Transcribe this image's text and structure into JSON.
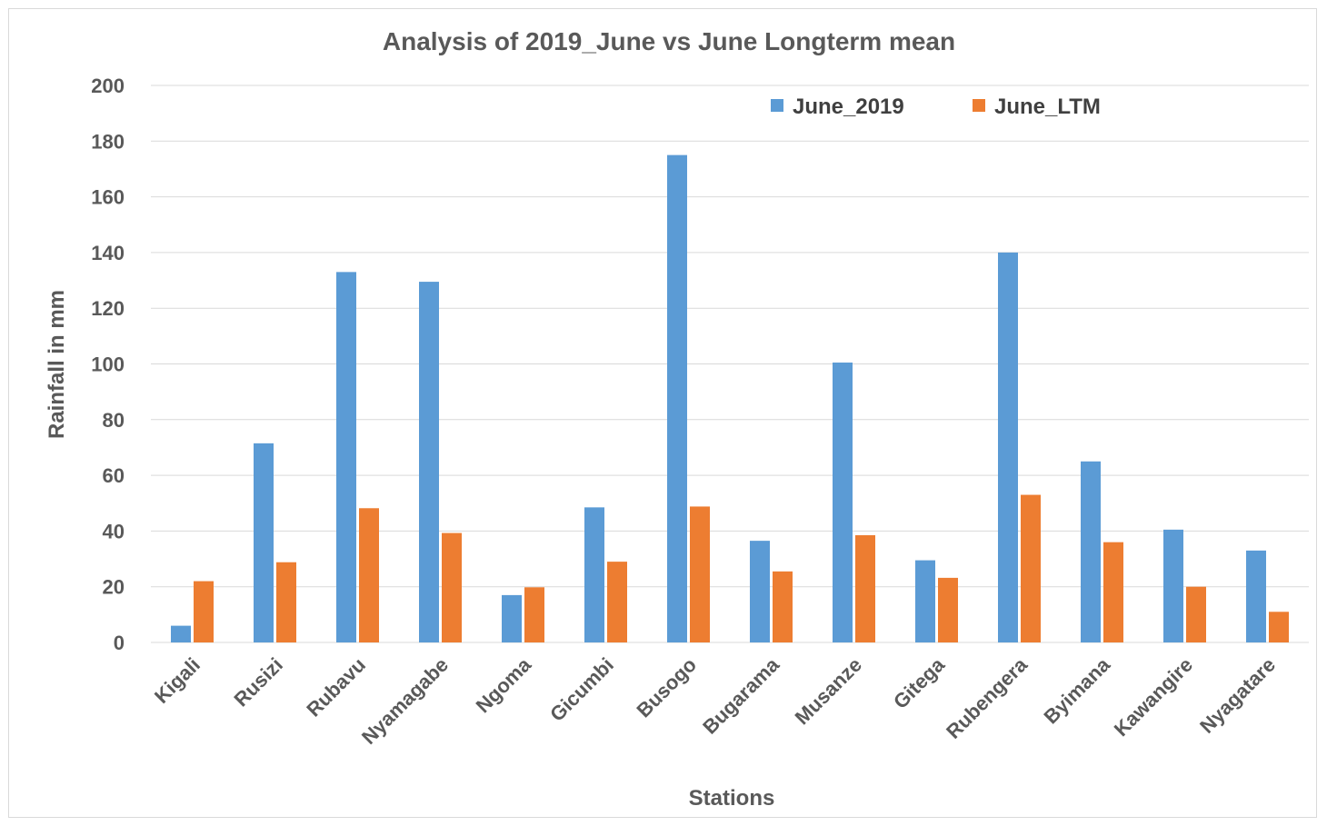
{
  "chart_data": {
    "type": "bar",
    "title": "Analysis of 2019_June vs June Longterm mean",
    "xlabel": "Stations",
    "ylabel": "Rainfall in mm",
    "ylim": [
      0,
      200
    ],
    "yticks": [
      0,
      20,
      40,
      60,
      80,
      100,
      120,
      140,
      160,
      180,
      200
    ],
    "grid": true,
    "legend_position": "top-right",
    "categories": [
      "Kigali",
      "Rusizi",
      "Rubavu",
      "Nyamagabe",
      "Ngoma",
      "Gicumbi",
      "Busogo",
      "Bugarama",
      "Musanze",
      "Gitega",
      "Rubengera",
      "Byimana",
      "Kawangire",
      "Nyagatare"
    ],
    "series": [
      {
        "name": "June_2019",
        "color": "#5b9bd5",
        "values": [
          6,
          71.5,
          133,
          129.5,
          17,
          48.5,
          175,
          36.5,
          100.5,
          29.5,
          140,
          65,
          40.5,
          33
        ]
      },
      {
        "name": "June_LTM",
        "color": "#ed7d31",
        "values": [
          22,
          28.8,
          48.2,
          39.3,
          19.8,
          29,
          48.8,
          25.5,
          38.5,
          23.2,
          53,
          36,
          20,
          11
        ]
      }
    ]
  }
}
